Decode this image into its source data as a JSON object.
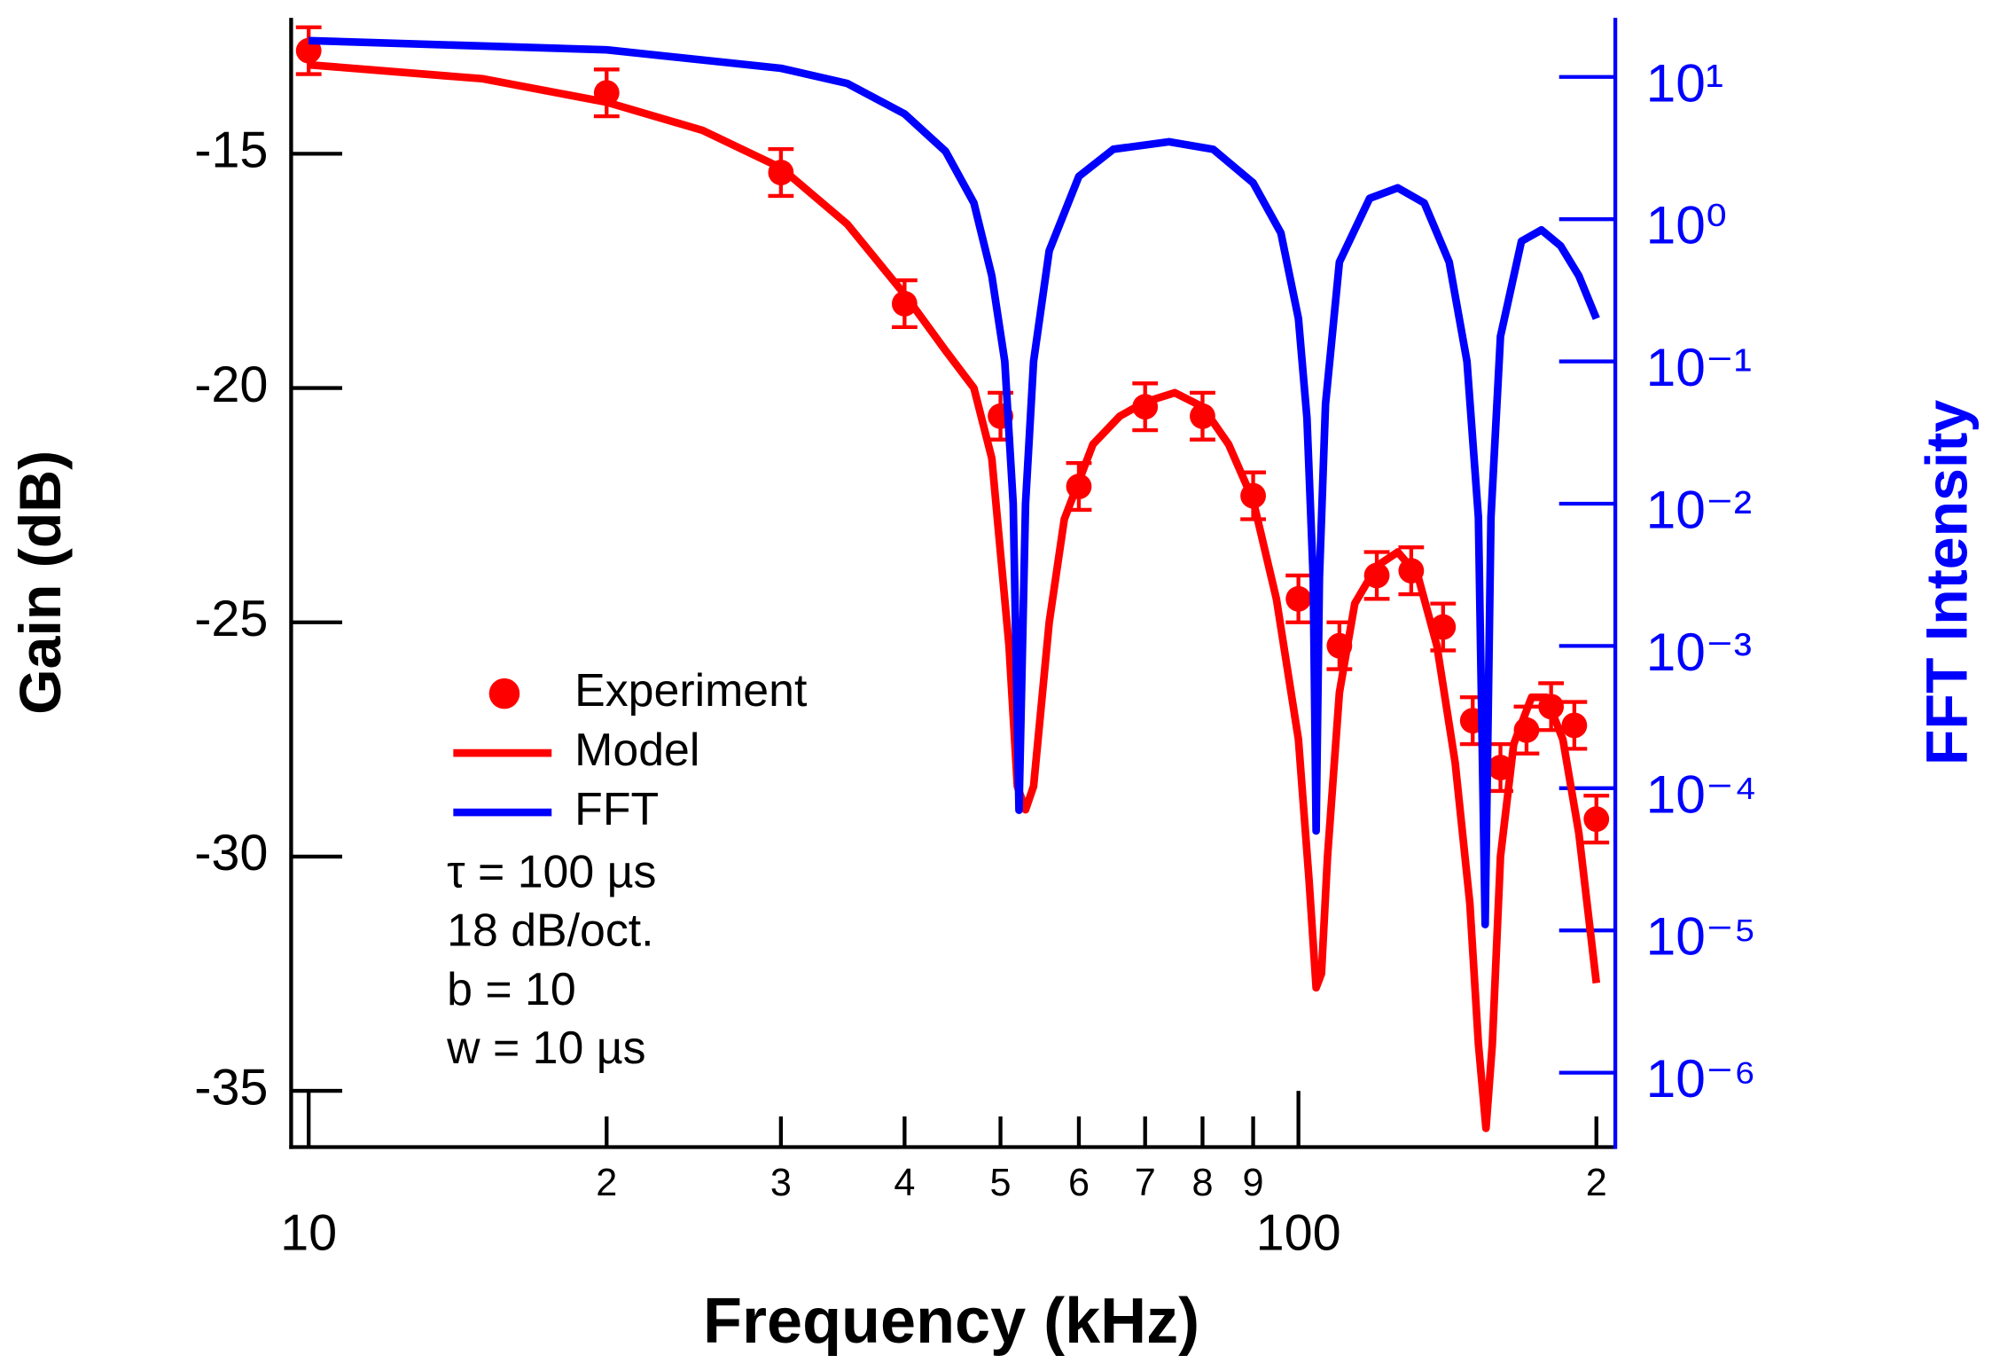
{
  "chart_data": {
    "type": "line",
    "xlabel": "Frequency (kHz)",
    "ylabel": "Gain (dB)",
    "y2label": "FFT Intensity",
    "xscale": "log",
    "y2scale": "log",
    "xlim": [
      9.6,
      209
    ],
    "ylim": [
      -36.2,
      -12.1
    ],
    "y2lim": [
      3e-07,
      26
    ],
    "xticks": [
      10,
      {
        "value": 20,
        "label": "2"
      },
      {
        "value": 30,
        "label": "3"
      },
      {
        "value": 40,
        "label": "4"
      },
      {
        "value": 50,
        "label": "5"
      },
      {
        "value": 60,
        "label": "6"
      },
      {
        "value": 70,
        "label": "7"
      },
      {
        "value": 80,
        "label": "8"
      },
      {
        "value": 90,
        "label": "9"
      },
      100,
      {
        "value": 200,
        "label": "2"
      }
    ],
    "yticks": [
      -15,
      -20,
      -25,
      -30,
      -35
    ],
    "y2ticks": [
      {
        "value": 10,
        "label": "10¹"
      },
      {
        "value": 1,
        "label": "10⁰"
      },
      {
        "value": 0.1,
        "label": "10⁻¹"
      },
      {
        "value": 0.01,
        "label": "10⁻²"
      },
      {
        "value": 0.001,
        "label": "10⁻³"
      },
      {
        "value": 0.0001,
        "label": "10⁻⁴"
      },
      {
        "value": 1e-05,
        "label": "10⁻⁵"
      },
      {
        "value": 1e-06,
        "label": "10⁻⁶"
      }
    ],
    "annotations": [
      "τ = 100 µs",
      "18 dB/oct.",
      "b = 10",
      "w = 10 µs"
    ],
    "series": [
      {
        "name": "Experiment",
        "type": "scatter",
        "color": "#ff0000",
        "x": [
          10,
          20,
          30,
          40,
          50,
          60,
          70,
          80,
          90,
          100,
          110,
          120,
          130,
          140,
          150,
          160,
          170,
          180,
          190,
          200
        ],
        "values": [
          -12.8,
          -13.7,
          -15.4,
          -18.2,
          -20.6,
          -22.1,
          -20.4,
          -20.6,
          -22.3,
          -24.5,
          -25.5,
          -24.0,
          -23.9,
          -25.1,
          -27.1,
          -28.1,
          -27.3,
          -26.8,
          -27.2,
          -29.2
        ],
        "errors": [
          0.5,
          0.5,
          0.5,
          0.5,
          0.5,
          0.5,
          0.5,
          0.5,
          0.5,
          0.5,
          0.5,
          0.5,
          0.5,
          0.5,
          0.5,
          0.5,
          0.5,
          0.5,
          0.5,
          0.5
        ]
      },
      {
        "name": "Model",
        "type": "line",
        "color": "#ff0000",
        "x": [
          10,
          15,
          20,
          25,
          30,
          35,
          40,
          44,
          47,
          49,
          51,
          52,
          53,
          54,
          56,
          58,
          62,
          66,
          70,
          75,
          80,
          85,
          90,
          95,
          100,
          102.5,
          104.2,
          105.5,
          107,
          110,
          114,
          120,
          126,
          132,
          138,
          144,
          149,
          152,
          154.7,
          157,
          160,
          165,
          172,
          178,
          185,
          192,
          200
        ],
        "values": [
          -13.1,
          -13.4,
          -13.9,
          -14.5,
          -15.3,
          -16.5,
          -18.0,
          -19.2,
          -20.0,
          -21.5,
          -25.5,
          -28.5,
          -29.0,
          -28.5,
          -25.0,
          -22.8,
          -21.2,
          -20.6,
          -20.3,
          -20.1,
          -20.4,
          -21.2,
          -22.4,
          -24.5,
          -27.5,
          -30.5,
          -32.8,
          -32.5,
          -30.0,
          -26.5,
          -24.6,
          -23.8,
          -23.5,
          -24.0,
          -25.5,
          -28.0,
          -31.0,
          -34.0,
          -35.8,
          -34.0,
          -30.0,
          -27.6,
          -26.6,
          -26.6,
          -27.5,
          -29.5,
          -32.7
        ]
      },
      {
        "name": "FFT",
        "type": "line",
        "color": "#0000ff",
        "axis": "y2",
        "x": [
          10,
          20,
          30,
          35,
          40,
          44,
          47,
          49,
          50.5,
          51.5,
          52.2,
          53,
          54,
          56,
          60,
          65,
          74,
          82,
          90,
          96,
          100,
          102,
          103.5,
          104.2,
          105,
          106.5,
          110,
          118,
          126,
          134,
          142,
          148,
          152,
          154.4,
          156.5,
          160,
          168,
          176,
          184,
          192,
          200
        ],
        "values": [
          18,
          15.5,
          11.5,
          9,
          5.5,
          3,
          1.3,
          0.4,
          0.1,
          0.01,
          7e-05,
          0.01,
          0.1,
          0.6,
          2,
          3.1,
          3.5,
          3.1,
          1.8,
          0.8,
          0.2,
          0.04,
          0.003,
          5e-05,
          0.003,
          0.05,
          0.5,
          1.4,
          1.66,
          1.3,
          0.5,
          0.1,
          0.008,
          1.1e-05,
          0.008,
          0.15,
          0.7,
          0.84,
          0.65,
          0.4,
          0.2
        ]
      }
    ]
  }
}
